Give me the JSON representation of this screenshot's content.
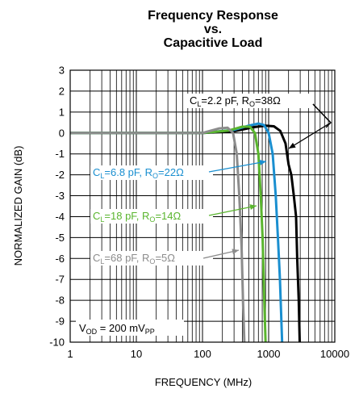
{
  "chart_data": {
    "type": "line",
    "title_lines": [
      "Frequency Response",
      "vs.",
      "Capacitive Load"
    ],
    "xlabel": "FREQUENCY (MHz)",
    "ylabel": "NORMALIZED GAIN (dB)",
    "x_scale": "log",
    "xlim": [
      1,
      10000
    ],
    "ylim": [
      -10,
      3
    ],
    "x_ticks": [
      "1",
      "10",
      "100",
      "1000",
      "10000"
    ],
    "y_ticks": [
      "3",
      "2",
      "1",
      "0",
      "-1",
      "-2",
      "-3",
      "-4",
      "-5",
      "-6",
      "-7",
      "-8",
      "-9",
      "-10"
    ],
    "grid": true,
    "series": [
      {
        "color": "#000000",
        "label": {
          "C": "C",
          "C_sub": "L",
          "cval": "=2.2 pF, ",
          "R": "R",
          "R_sub": "O",
          "rval": "=38Ω"
        },
        "points": [
          [
            1,
            0
          ],
          [
            100,
            0
          ],
          [
            300,
            0.08
          ],
          [
            600,
            0.28
          ],
          [
            900,
            0.35
          ],
          [
            1200,
            0.32
          ],
          [
            1500,
            0.1
          ],
          [
            1800,
            -0.5
          ],
          [
            2000,
            -1.5
          ],
          [
            2200,
            -2.0
          ],
          [
            2400,
            -3.0
          ],
          [
            2600,
            -4.0
          ],
          [
            2700,
            -6.0
          ],
          [
            2850,
            -8.0
          ],
          [
            2950,
            -10
          ]
        ]
      },
      {
        "color": "#1a8fd0",
        "label": {
          "C": "C",
          "C_sub": "L",
          "cval": "=6.8 pF, ",
          "R": "R",
          "R_sub": "O",
          "rval": "=22Ω"
        },
        "points": [
          [
            1,
            0
          ],
          [
            100,
            0
          ],
          [
            300,
            0.15
          ],
          [
            500,
            0.35
          ],
          [
            700,
            0.45
          ],
          [
            850,
            0.38
          ],
          [
            1000,
            0.0
          ],
          [
            1150,
            -1.0
          ],
          [
            1280,
            -3.0
          ],
          [
            1380,
            -5.0
          ],
          [
            1480,
            -7.0
          ],
          [
            1600,
            -10
          ]
        ]
      },
      {
        "color": "#5ab52e",
        "label": {
          "C": "C",
          "C_sub": "L",
          "cval": "=18 pF, ",
          "R": "R",
          "R_sub": "O",
          "rval": "=14Ω"
        },
        "points": [
          [
            1,
            0
          ],
          [
            100,
            0
          ],
          [
            250,
            0.12
          ],
          [
            400,
            0.3
          ],
          [
            520,
            0.3
          ],
          [
            620,
            0.0
          ],
          [
            700,
            -1.0
          ],
          [
            760,
            -3.0
          ],
          [
            810,
            -5.0
          ],
          [
            860,
            -8.0
          ],
          [
            900,
            -10
          ]
        ]
      },
      {
        "color": "#8c8c8c",
        "label": {
          "C": "C",
          "C_sub": "L",
          "cval": "=68 pF, ",
          "R": "R",
          "R_sub": "O",
          "rval": "=5Ω"
        },
        "points": [
          [
            1,
            0
          ],
          [
            100,
            0
          ],
          [
            180,
            0.22
          ],
          [
            240,
            0.25
          ],
          [
            290,
            0.0
          ],
          [
            330,
            -1.0
          ],
          [
            360,
            -3.0
          ],
          [
            390,
            -5.5
          ],
          [
            410,
            -8.0
          ],
          [
            430,
            -10
          ]
        ]
      }
    ],
    "annotation": {
      "V": "V",
      "V_sub": "OD",
      "mid": " = 200 mV",
      "PP": "PP"
    }
  }
}
